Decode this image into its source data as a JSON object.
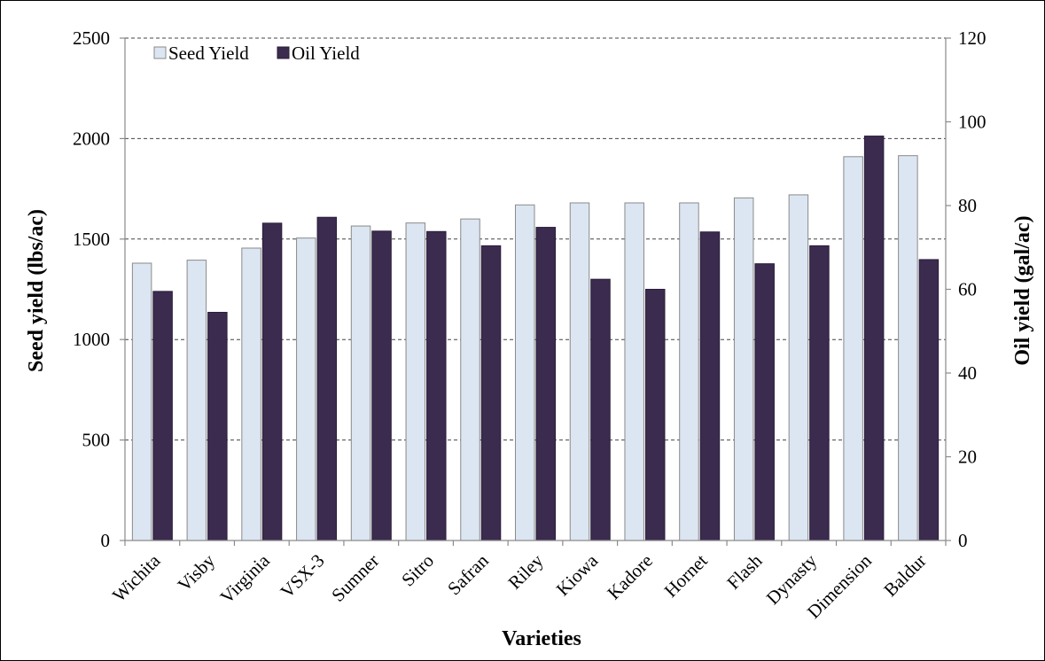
{
  "chart_data": {
    "type": "bar",
    "title": "",
    "xlabel": "Varieties",
    "ylabel": "Seed yield (lbs/ac)",
    "y2label": "Oil yield (gal/ac)",
    "ylim": [
      0,
      2500
    ],
    "y2lim": [
      0,
      120
    ],
    "yticks": [
      "0",
      "500",
      "1000",
      "1500",
      "2000",
      "2500"
    ],
    "y2ticks": [
      "0",
      "20",
      "40",
      "60",
      "80",
      "100",
      "120"
    ],
    "grid": true,
    "legend_position": "top-left",
    "categories": [
      "Wichita",
      "Visby",
      "Virginia",
      "VSX-3",
      "Sumner",
      "Sitro",
      "Safran",
      "Riley",
      "Kiowa",
      "Kadore",
      "Hornet",
      "Flash",
      "Dynasty",
      "Dimension",
      "Baldur"
    ],
    "series": [
      {
        "name": "Seed Yield",
        "axis": "left",
        "color": "#dce6f2",
        "values": [
          1380,
          1395,
          1455,
          1505,
          1565,
          1580,
          1600,
          1670,
          1680,
          1680,
          1680,
          1705,
          1720,
          1910,
          1915
        ]
      },
      {
        "name": "Oil Yield",
        "axis": "right",
        "color": "#3b2b4f",
        "values": [
          59.5,
          54.5,
          75.8,
          77.2,
          73.9,
          73.8,
          70.4,
          74.8,
          62.4,
          60.0,
          73.7,
          66.1,
          70.4,
          96.6,
          67.1
        ]
      }
    ]
  }
}
